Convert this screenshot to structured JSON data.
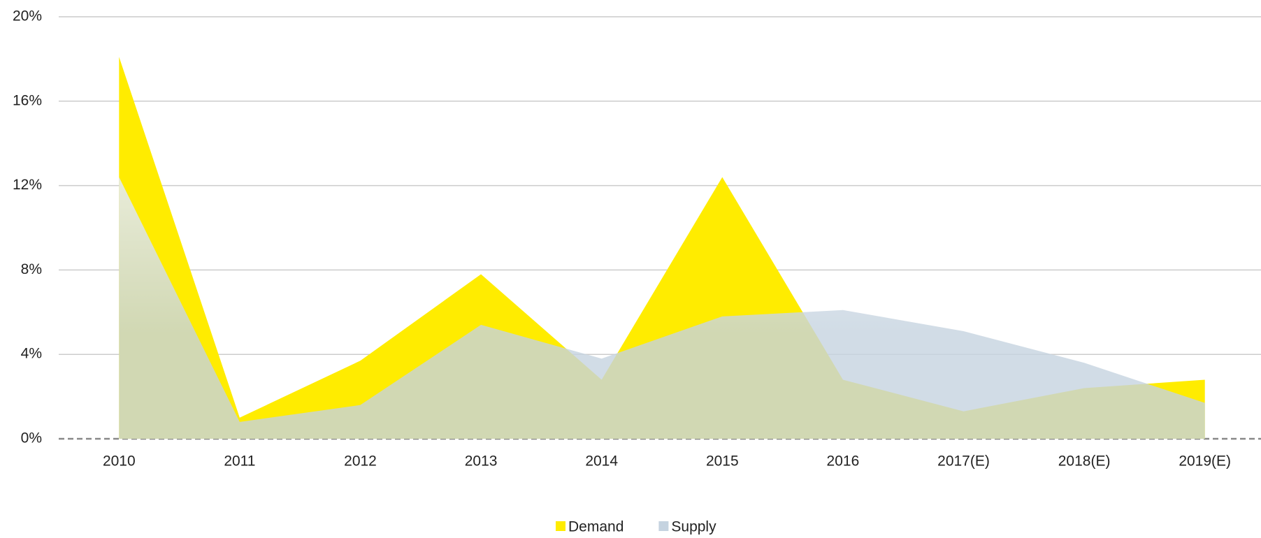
{
  "chart_data": {
    "type": "area",
    "categories": [
      "2010",
      "2011",
      "2012",
      "2013",
      "2014",
      "2015",
      "2016",
      "2017(E)",
      "2018(E)",
      "2019(E)"
    ],
    "series": [
      {
        "name": "Demand",
        "color": "#ffec00",
        "values": [
          18.1,
          1.0,
          3.7,
          7.8,
          2.8,
          12.4,
          2.8,
          1.3,
          2.4,
          2.8
        ]
      },
      {
        "name": "Supply",
        "color": "#c5d3e0",
        "values": [
          12.4,
          0.8,
          1.6,
          5.4,
          3.8,
          5.8,
          6.1,
          5.1,
          3.6,
          1.7
        ]
      }
    ],
    "ylim": [
      0,
      20
    ],
    "yticks": [
      {
        "value": 0,
        "label": "0%"
      },
      {
        "value": 4,
        "label": "4%"
      },
      {
        "value": 8,
        "label": "8%"
      },
      {
        "value": 12,
        "label": "12%"
      },
      {
        "value": 16,
        "label": "16%"
      },
      {
        "value": 20,
        "label": "20%"
      }
    ],
    "grid": true,
    "legend": "bottom"
  }
}
